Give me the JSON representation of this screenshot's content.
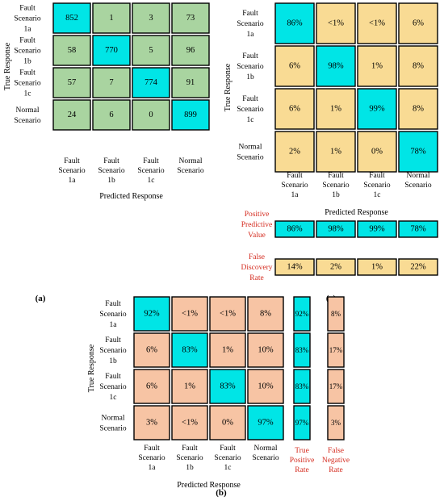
{
  "colors": {
    "diag": "#00e5e6",
    "green": "#a9d4a0",
    "yellow": "#f9db94",
    "peach": "#f7c4a4",
    "metric_label": "#d42a1e"
  },
  "chart_data": [
    {
      "type": "heatmap",
      "panel": "(a)",
      "xlabel": "Predicted Response",
      "ylabel": "True Response",
      "categories": [
        "Fault Scenario 1a",
        "Fault Scenario 1b",
        "Fault Scenario 1c",
        "Normal Scenario"
      ],
      "matrix": [
        [
          "852",
          "1",
          "3",
          "73"
        ],
        [
          "58",
          "770",
          "5",
          "96"
        ],
        [
          "57",
          "7",
          "774",
          "91"
        ],
        [
          "24",
          "6",
          "0",
          "899"
        ]
      ]
    },
    {
      "type": "heatmap",
      "panel": "(c)",
      "xlabel": "Predicted Response",
      "ylabel": "True Response",
      "categories": [
        "Fault Scenario 1a",
        "Fault Scenario 1b",
        "Fault Scenario 1c",
        "Normal Scenario"
      ],
      "matrix": [
        [
          "86%",
          "<1%",
          "<1%",
          "6%"
        ],
        [
          "6%",
          "98%",
          "1%",
          "8%"
        ],
        [
          "6%",
          "1%",
          "99%",
          "8%"
        ],
        [
          "2%",
          "1%",
          "0%",
          "78%"
        ]
      ],
      "summary_rows": [
        {
          "label": "Positive Predictive Value",
          "values": [
            "86%",
            "98%",
            "99%",
            "78%"
          ]
        },
        {
          "label": "False Discovery Rate",
          "values": [
            "14%",
            "2%",
            "1%",
            "22%"
          ]
        }
      ]
    },
    {
      "type": "heatmap",
      "panel": "(b)",
      "xlabel": "Predicted Response",
      "ylabel": "True Response",
      "categories": [
        "Fault Scenario 1a",
        "Fault Scenario 1b",
        "Fault Scenario 1c",
        "Normal Scenario"
      ],
      "matrix": [
        [
          "92%",
          "<1%",
          "<1%",
          "8%"
        ],
        [
          "6%",
          "83%",
          "1%",
          "10%"
        ],
        [
          "6%",
          "1%",
          "83%",
          "10%"
        ],
        [
          "3%",
          "<1%",
          "0%",
          "97%"
        ]
      ],
      "summary_cols": [
        {
          "label": "True Positive Rate",
          "values": [
            "92%",
            "83%",
            "83%",
            "97%"
          ]
        },
        {
          "label": "False Negative Rate",
          "values": [
            "8%",
            "17%",
            "17%",
            "3%"
          ]
        }
      ]
    }
  ]
}
